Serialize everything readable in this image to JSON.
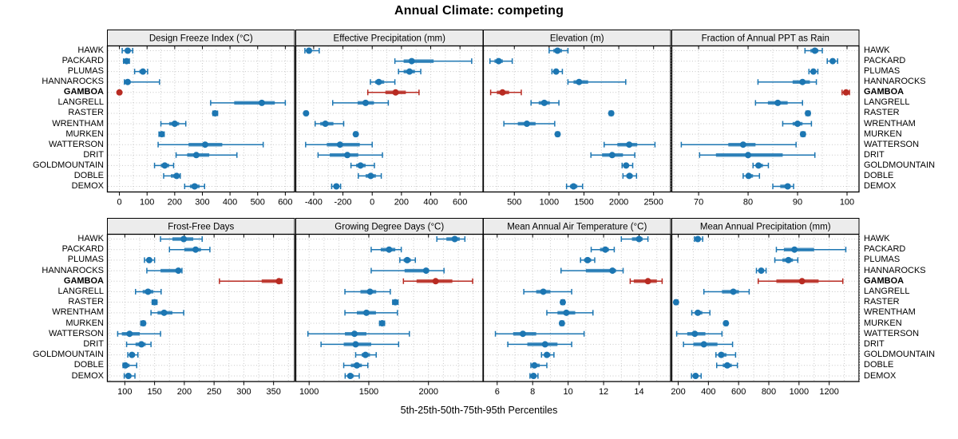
{
  "title": "Annual Climate: competing",
  "caption": "5th-25th-50th-75th-95th Percentiles",
  "colors": {
    "series": "#1c76b2",
    "highlight": "#b82b22",
    "strip_bg": "#ececec",
    "grid": "#c8c8c8",
    "border": "#000000",
    "panel_bg": "#ffffff"
  },
  "chart_data": {
    "type": "dotplot-percentiles",
    "percentile_levels": [
      5,
      25,
      50,
      75,
      95
    ],
    "legend": "none",
    "grid": "dotted",
    "rows": [
      "HAWK",
      "PACKARD",
      "PLUMAS",
      "HANNAROCKS",
      "GAMBOA",
      "LANGRELL",
      "RASTER",
      "WRENTHAM",
      "MURKEN",
      "WATTERSON",
      "DRIT",
      "GOLDMOUNTAIN",
      "DOBLE",
      "DEMOX"
    ],
    "highlight_row": "GAMBOA",
    "panels": [
      {
        "title": "Design Freeze Index (°C)",
        "xlim": [
          -45,
          635
        ],
        "ticks": [
          0,
          100,
          200,
          300,
          400,
          500,
          600
        ],
        "grid_step": 50,
        "values": {
          "HAWK": [
            10,
            20,
            30,
            38,
            48
          ],
          "PACKARD": [
            15,
            20,
            26,
            31,
            36
          ],
          "PLUMAS": [
            55,
            72,
            85,
            93,
            102
          ],
          "HANNAROCKS": [
            18,
            24,
            30,
            40,
            145
          ],
          "GAMBOA": [
            -2,
            -1,
            0,
            1,
            4
          ],
          "LANGRELL": [
            330,
            415,
            515,
            562,
            600
          ],
          "RASTER": [
            338,
            342,
            346,
            350,
            355
          ],
          "WRENTHAM": [
            150,
            180,
            200,
            216,
            240
          ],
          "MURKEN": [
            143,
            148,
            153,
            157,
            162
          ],
          "WATTERSON": [
            140,
            250,
            310,
            372,
            520
          ],
          "DRIT": [
            205,
            245,
            278,
            325,
            425
          ],
          "GOLDMOUNTAIN": [
            127,
            150,
            164,
            180,
            196
          ],
          "DOBLE": [
            160,
            186,
            207,
            213,
            220
          ],
          "DEMOX": [
            236,
            255,
            272,
            290,
            308
          ]
        }
      },
      {
        "title": "Effective Precipitation (mm)",
        "xlim": [
          -525,
          760
        ],
        "ticks": [
          -400,
          -200,
          0,
          200,
          400,
          600
        ],
        "grid_step": 100,
        "values": {
          "HAWK": [
            -460,
            -448,
            -432,
            -415,
            -362
          ],
          "PACKARD": [
            155,
            215,
            270,
            420,
            680
          ],
          "PLUMAS": [
            180,
            215,
            255,
            292,
            332
          ],
          "HANNAROCKS": [
            -12,
            20,
            45,
            82,
            155
          ],
          "GAMBOA": [
            -30,
            90,
            160,
            230,
            320
          ],
          "LANGRELL": [
            -270,
            -100,
            -45,
            12,
            110
          ],
          "RASTER": [
            -462,
            -457,
            -452,
            -447,
            -442
          ],
          "WRENTHAM": [
            -390,
            -355,
            -320,
            -265,
            -195
          ],
          "MURKEN": [
            -122,
            -117,
            -112,
            -107,
            -102
          ],
          "WATTERSON": [
            -455,
            -310,
            -220,
            -85,
            0
          ],
          "DRIT": [
            -370,
            -290,
            -170,
            -95,
            70
          ],
          "GOLDMOUNTAIN": [
            -145,
            -110,
            -80,
            -45,
            15
          ],
          "DOBLE": [
            -95,
            -45,
            -10,
            25,
            62
          ],
          "DEMOX": [
            -277,
            -260,
            -245,
            -232,
            -216
          ]
        }
      },
      {
        "title": "Elevation (m)",
        "xlim": [
          50,
          2750
        ],
        "ticks": [
          500,
          1000,
          1500,
          2000,
          2500
        ],
        "grid_step": 250,
        "values": {
          "HAWK": [
            1000,
            1060,
            1120,
            1185,
            1270
          ],
          "PACKARD": [
            150,
            215,
            275,
            335,
            470
          ],
          "PLUMAS": [
            1040,
            1072,
            1100,
            1132,
            1190
          ],
          "HANNAROCKS": [
            1270,
            1350,
            1430,
            1560,
            2100
          ],
          "GAMBOA": [
            160,
            250,
            330,
            425,
            600
          ],
          "LANGRELL": [
            740,
            850,
            930,
            1010,
            1140
          ],
          "RASTER": [
            1865,
            1880,
            1892,
            1903,
            1915
          ],
          "WRENTHAM": [
            350,
            550,
            680,
            805,
            1080
          ],
          "MURKEN": [
            1098,
            1110,
            1122,
            1133,
            1145
          ],
          "WATTERSON": [
            1790,
            1980,
            2150,
            2265,
            2520
          ],
          "DRIT": [
            1600,
            1760,
            1905,
            2060,
            2230
          ],
          "GOLDMOUNTAIN": [
            2048,
            2078,
            2105,
            2140,
            2200
          ],
          "DOBLE": [
            2060,
            2110,
            2155,
            2200,
            2255
          ],
          "DEMOX": [
            1250,
            1300,
            1350,
            1405,
            1480
          ]
        }
      },
      {
        "title": "Fraction of Annual PPT as Rain",
        "xlim": [
          64.5,
          102.5
        ],
        "ticks": [
          70,
          80,
          90,
          100
        ],
        "grid_step": 5,
        "values": {
          "HAWK": [
            91.5,
            92.6,
            93.5,
            94.2,
            95.0
          ],
          "PACKARD": [
            96.0,
            96.6,
            97.1,
            97.6,
            98.1
          ],
          "PLUMAS": [
            92.3,
            92.8,
            93.2,
            93.6,
            94.1
          ],
          "HANNAROCKS": [
            82.0,
            89.0,
            91.0,
            92.5,
            93.8
          ],
          "GAMBOA": [
            99.0,
            99.5,
            99.8,
            100.1,
            100.5
          ],
          "LANGRELL": [
            81.5,
            84.0,
            86.0,
            88.0,
            91.0
          ],
          "RASTER": [
            91.7,
            91.9,
            92.1,
            92.3,
            92.5
          ],
          "WRENTHAM": [
            87.0,
            89.0,
            90.0,
            91.0,
            92.8
          ],
          "MURKEN": [
            90.7,
            90.9,
            91.1,
            91.3,
            91.5
          ],
          "WATTERSON": [
            66.5,
            76.0,
            79.0,
            81.5,
            89.7
          ],
          "DRIT": [
            70.2,
            73.5,
            80.0,
            87.0,
            93.5
          ],
          "GOLDMOUNTAIN": [
            81.0,
            81.6,
            82.1,
            83.0,
            84.1
          ],
          "DOBLE": [
            79.0,
            79.6,
            80.1,
            81.0,
            82.3
          ],
          "DEMOX": [
            85.0,
            86.5,
            88.0,
            88.6,
            89.2
          ]
        }
      },
      {
        "title": "Frost-Free Days",
        "xlim": [
          70,
          386
        ],
        "ticks": [
          100,
          150,
          200,
          250,
          300,
          350
        ],
        "grid_step": 25,
        "values": {
          "HAWK": [
            160,
            180,
            199,
            215,
            230
          ],
          "PACKARD": [
            175,
            200,
            219,
            228,
            243
          ],
          "PLUMAS": [
            133,
            137,
            141,
            145,
            150
          ],
          "HANNAROCKS": [
            137,
            160,
            190,
            192,
            196
          ],
          "GAMBOA": [
            259,
            330,
            359,
            361,
            364
          ],
          "LANGRELL": [
            118,
            130,
            139,
            148,
            161
          ],
          "RASTER": [
            146,
            148,
            150,
            152,
            154
          ],
          "WRENTHAM": [
            144,
            155,
            166,
            180,
            199
          ],
          "MURKEN": [
            127,
            129,
            131,
            132,
            134
          ],
          "WATTERSON": [
            88,
            95,
            108,
            125,
            160
          ],
          "DRIT": [
            103,
            118,
            128,
            135,
            144
          ],
          "GOLDMOUNTAIN": [
            105,
            108,
            112,
            117,
            122
          ],
          "DOBLE": [
            97,
            99,
            101,
            108,
            120
          ],
          "DEMOX": [
            99,
            102,
            106,
            111,
            117
          ]
        }
      },
      {
        "title": "Growing Degree Days (°C)",
        "xlim": [
          885,
          2460
        ],
        "ticks": [
          1000,
          1500,
          2000
        ],
        "grid_step": 125,
        "values": {
          "HAWK": [
            2070,
            2150,
            2220,
            2262,
            2305
          ],
          "PACKARD": [
            1520,
            1600,
            1670,
            1722,
            1772
          ],
          "PLUMAS": [
            1760,
            1792,
            1822,
            1852,
            1890
          ],
          "HANNAROCKS": [
            1520,
            1800,
            1980,
            2005,
            2130
          ],
          "GAMBOA": [
            1790,
            1900,
            2060,
            2200,
            2370
          ],
          "LANGRELL": [
            1300,
            1430,
            1510,
            1562,
            1680
          ],
          "RASTER": [
            1700,
            1712,
            1722,
            1732,
            1745
          ],
          "WRENTHAM": [
            1300,
            1400,
            1480,
            1560,
            1740
          ],
          "MURKEN": [
            1590,
            1600,
            1612,
            1622,
            1632
          ],
          "WATTERSON": [
            990,
            1300,
            1380,
            1480,
            1840
          ],
          "DRIT": [
            1100,
            1290,
            1390,
            1520,
            1750
          ],
          "GOLDMOUNTAIN": [
            1390,
            1440,
            1472,
            1510,
            1562
          ],
          "DOBLE": [
            1290,
            1350,
            1400,
            1442,
            1492
          ],
          "DEMOX": [
            1302,
            1322,
            1345,
            1372,
            1420
          ]
        }
      },
      {
        "title": "Mean Annual Air Temperature (°C)",
        "xlim": [
          5.2,
          15.8
        ],
        "ticks": [
          6,
          8,
          10,
          12,
          14
        ],
        "grid_step": 1,
        "values": {
          "HAWK": [
            13.0,
            13.6,
            14.0,
            14.2,
            14.5
          ],
          "PACKARD": [
            11.3,
            11.8,
            12.1,
            12.3,
            12.6
          ],
          "PLUMAS": [
            10.7,
            10.9,
            11.1,
            11.3,
            11.5
          ],
          "HANNAROCKS": [
            9.6,
            11.0,
            12.5,
            12.7,
            13.1
          ],
          "GAMBOA": [
            13.5,
            13.7,
            14.5,
            15.0,
            15.3
          ],
          "LANGRELL": [
            7.5,
            8.2,
            8.6,
            9.0,
            10.2
          ],
          "RASTER": [
            9.6,
            9.65,
            9.7,
            9.75,
            9.8
          ],
          "WRENTHAM": [
            8.8,
            9.4,
            9.9,
            10.4,
            11.4
          ],
          "MURKEN": [
            9.55,
            9.6,
            9.65,
            9.7,
            9.75
          ],
          "WATTERSON": [
            5.9,
            6.9,
            7.45,
            8.2,
            10.9
          ],
          "DRIT": [
            6.6,
            7.7,
            8.7,
            9.4,
            10.2
          ],
          "GOLDMOUNTAIN": [
            8.5,
            8.65,
            8.8,
            9.0,
            9.2
          ],
          "DOBLE": [
            7.9,
            8.0,
            8.1,
            8.4,
            8.8
          ],
          "DEMOX": [
            7.85,
            7.95,
            8.05,
            8.15,
            8.3
          ]
        }
      },
      {
        "title": "Mean Annual Precipitation (mm)",
        "xlim": [
          155,
          1400
        ],
        "ticks": [
          200,
          400,
          600,
          800,
          1000,
          1200
        ],
        "grid_step": 100,
        "values": {
          "HAWK": [
            308,
            318,
            330,
            345,
            362
          ],
          "PACKARD": [
            850,
            900,
            970,
            1100,
            1310
          ],
          "PLUMAS": [
            840,
            890,
            930,
            960,
            992
          ],
          "HANNAROCKS": [
            718,
            735,
            750,
            765,
            782
          ],
          "GAMBOA": [
            730,
            850,
            1020,
            1130,
            1290
          ],
          "LANGRELL": [
            370,
            490,
            565,
            602,
            670
          ],
          "RASTER": [
            176,
            181,
            186,
            191,
            197
          ],
          "WRENTHAM": [
            290,
            310,
            330,
            360,
            410
          ],
          "MURKEN": [
            506,
            511,
            516,
            521,
            527
          ],
          "WATTERSON": [
            190,
            260,
            310,
            380,
            490
          ],
          "DRIT": [
            235,
            300,
            370,
            460,
            560
          ],
          "GOLDMOUNTAIN": [
            450,
            465,
            485,
            520,
            580
          ],
          "DOBLE": [
            455,
            495,
            525,
            555,
            592
          ],
          "DEMOX": [
            288,
            300,
            315,
            330,
            352
          ]
        }
      }
    ]
  }
}
